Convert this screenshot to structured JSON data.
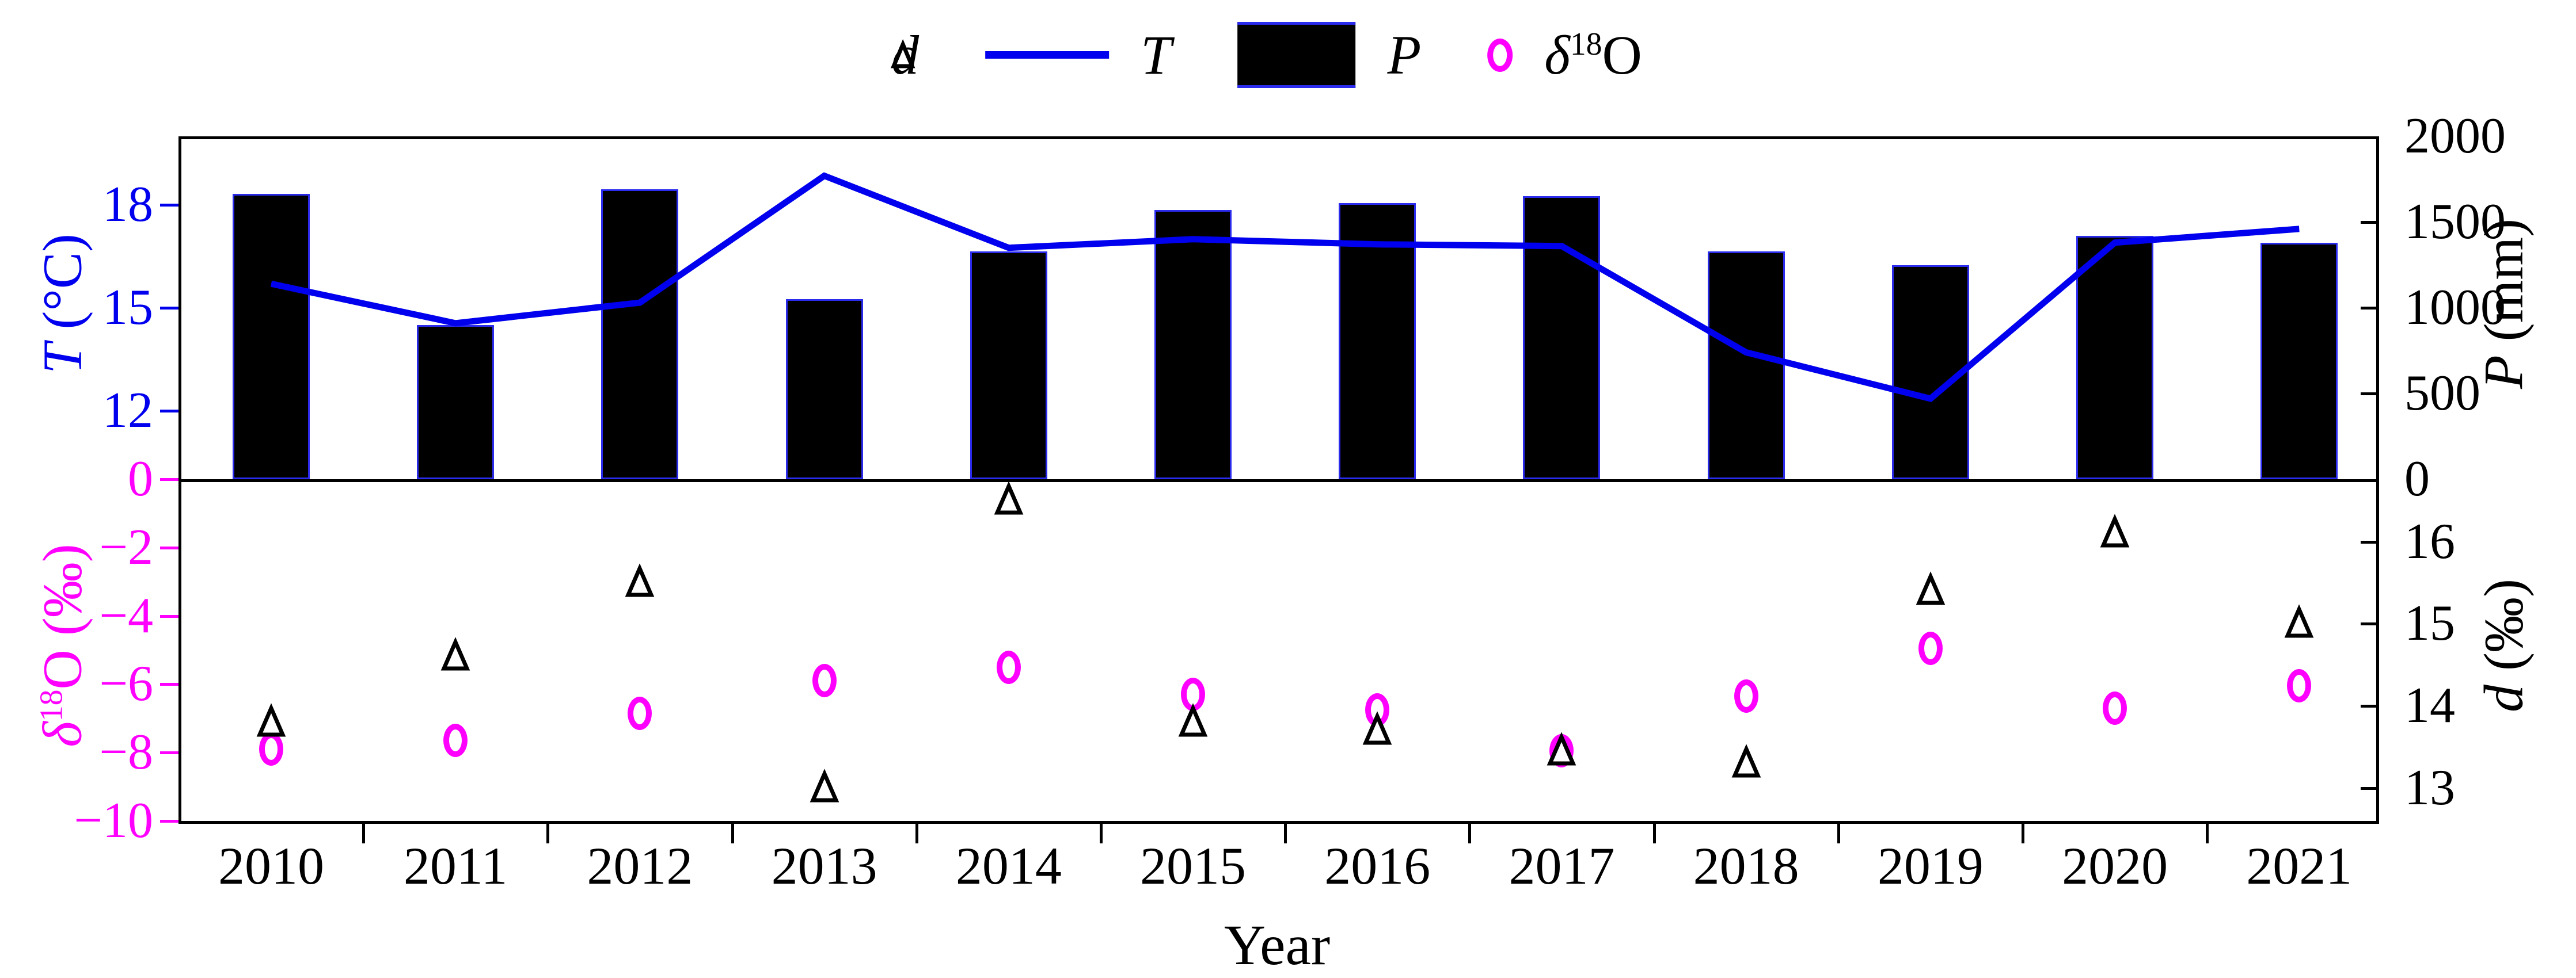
{
  "legend": {
    "items": [
      {
        "label": "d",
        "icon": "triangle-marker-icon"
      },
      {
        "label": "T",
        "icon": "line-swatch"
      },
      {
        "label": "P",
        "icon": "bar-swatch"
      },
      {
        "label_delta": "δ",
        "label_sup": "18",
        "label_suffix": "O",
        "icon": "circle-marker-icon"
      }
    ]
  },
  "axes": {
    "temp": {
      "title_var": "T",
      "title_unit": " (°C)",
      "color": "#0000ee",
      "min": 10,
      "max": 20,
      "ticks": [
        12,
        15,
        18
      ]
    },
    "precip": {
      "title_var": "P",
      "title_unit": " (mm)",
      "color": "#000000",
      "min": 0,
      "max": 2000,
      "ticks": [
        0,
        500,
        1000,
        1500,
        2000
      ]
    },
    "d18o": {
      "title_delta": "δ",
      "title_sup": "18",
      "title_suffix": "O (‰)",
      "color": "#ff00ff",
      "min": -10,
      "max": 0,
      "ticks": [
        0,
        -2,
        -4,
        -6,
        -8,
        -10
      ]
    },
    "dexcess": {
      "title_var": "d",
      "title_unit": " (‰)",
      "color": "#000000",
      "min": 12.6,
      "max": 16.76,
      "ticks": [
        13,
        14,
        15,
        16
      ]
    },
    "x": {
      "title": "Year"
    }
  },
  "chart_data": {
    "type": "bar+line+scatter",
    "title": "",
    "xlabel": "Year",
    "categories": [
      2010,
      2011,
      2012,
      2013,
      2014,
      2015,
      2016,
      2017,
      2018,
      2019,
      2020,
      2021
    ],
    "series": [
      {
        "name": "P",
        "type": "bar",
        "axis": "precip",
        "unit": "mm",
        "color": "#000000",
        "values": [
          1665,
          900,
          1690,
          1050,
          1330,
          1570,
          1610,
          1650,
          1330,
          1250,
          1420,
          1380
        ]
      },
      {
        "name": "T",
        "type": "line",
        "axis": "temp",
        "unit": "°C",
        "color": "#0000ee",
        "values": [
          15.7,
          14.55,
          15.15,
          18.85,
          16.75,
          17.0,
          16.85,
          16.8,
          13.7,
          12.35,
          16.9,
          17.3
        ]
      },
      {
        "name": "d",
        "type": "scatter-triangle",
        "axis": "dexcess",
        "unit": "‰",
        "color": "#000000",
        "values": [
          13.8,
          14.6,
          15.5,
          13.0,
          16.5,
          13.8,
          13.7,
          13.45,
          13.3,
          15.4,
          16.1,
          15.0
        ]
      },
      {
        "name": "δ18O",
        "type": "scatter-circle",
        "axis": "d18o",
        "unit": "‰",
        "color": "#ff00ff",
        "values": [
          -7.9,
          -7.65,
          -6.85,
          -5.9,
          -5.5,
          -6.3,
          -6.75,
          -7.95,
          -6.35,
          -4.95,
          -6.7,
          -6.05
        ]
      }
    ],
    "panel_top_axes": {
      "left": "T (°C) 10–20",
      "right": "P (mm) 0–2000"
    },
    "panel_bottom_axes": {
      "left": "δ18O (‰) 0–−10",
      "right": "d (‰) ~12.6–16.8"
    },
    "grid": false,
    "legend_position": "top-center"
  },
  "layout_colors": {
    "line_blue": "#0000ee",
    "magenta": "#ff00ff",
    "bar_black": "#000000",
    "bar_edge": "#2b2bee"
  }
}
